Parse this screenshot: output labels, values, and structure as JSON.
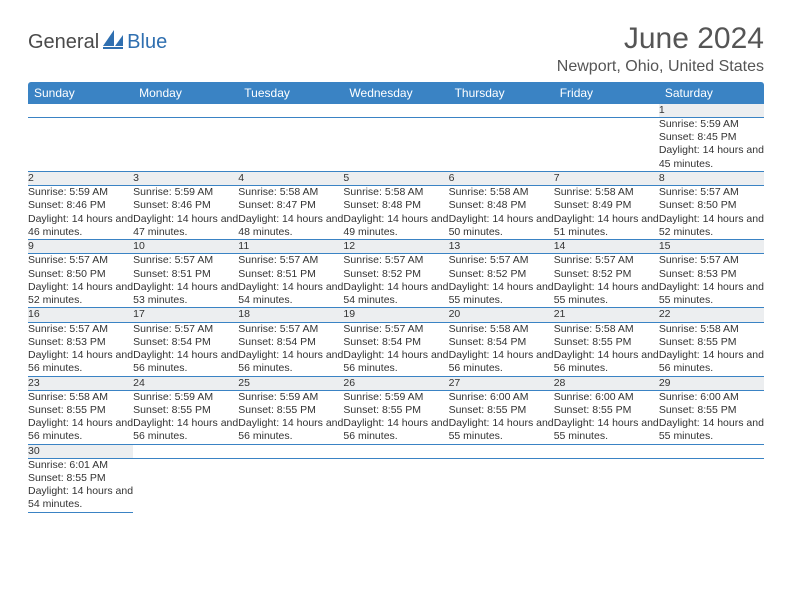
{
  "logo": {
    "part1": "General",
    "part2": "Blue"
  },
  "title": "June 2024",
  "location": "Newport, Ohio, United States",
  "colors": {
    "header_bg": "#3a83c4",
    "header_text": "#ffffff",
    "daynum_bg": "#eceef0",
    "divider": "#3a83c4",
    "logo_gray": "#4a4a4a",
    "logo_blue": "#2f6fb0"
  },
  "weekdays": [
    "Sunday",
    "Monday",
    "Tuesday",
    "Wednesday",
    "Thursday",
    "Friday",
    "Saturday"
  ],
  "weeks": [
    {
      "nums": [
        "",
        "",
        "",
        "",
        "",
        "",
        "1"
      ],
      "details": [
        "",
        "",
        "",
        "",
        "",
        "",
        "Sunrise: 5:59 AM\nSunset: 8:45 PM\nDaylight: 14 hours and 45 minutes."
      ]
    },
    {
      "nums": [
        "2",
        "3",
        "4",
        "5",
        "6",
        "7",
        "8"
      ],
      "details": [
        "Sunrise: 5:59 AM\nSunset: 8:46 PM\nDaylight: 14 hours and 46 minutes.",
        "Sunrise: 5:59 AM\nSunset: 8:46 PM\nDaylight: 14 hours and 47 minutes.",
        "Sunrise: 5:58 AM\nSunset: 8:47 PM\nDaylight: 14 hours and 48 minutes.",
        "Sunrise: 5:58 AM\nSunset: 8:48 PM\nDaylight: 14 hours and 49 minutes.",
        "Sunrise: 5:58 AM\nSunset: 8:48 PM\nDaylight: 14 hours and 50 minutes.",
        "Sunrise: 5:58 AM\nSunset: 8:49 PM\nDaylight: 14 hours and 51 minutes.",
        "Sunrise: 5:57 AM\nSunset: 8:50 PM\nDaylight: 14 hours and 52 minutes."
      ]
    },
    {
      "nums": [
        "9",
        "10",
        "11",
        "12",
        "13",
        "14",
        "15"
      ],
      "details": [
        "Sunrise: 5:57 AM\nSunset: 8:50 PM\nDaylight: 14 hours and 52 minutes.",
        "Sunrise: 5:57 AM\nSunset: 8:51 PM\nDaylight: 14 hours and 53 minutes.",
        "Sunrise: 5:57 AM\nSunset: 8:51 PM\nDaylight: 14 hours and 54 minutes.",
        "Sunrise: 5:57 AM\nSunset: 8:52 PM\nDaylight: 14 hours and 54 minutes.",
        "Sunrise: 5:57 AM\nSunset: 8:52 PM\nDaylight: 14 hours and 55 minutes.",
        "Sunrise: 5:57 AM\nSunset: 8:52 PM\nDaylight: 14 hours and 55 minutes.",
        "Sunrise: 5:57 AM\nSunset: 8:53 PM\nDaylight: 14 hours and 55 minutes."
      ]
    },
    {
      "nums": [
        "16",
        "17",
        "18",
        "19",
        "20",
        "21",
        "22"
      ],
      "details": [
        "Sunrise: 5:57 AM\nSunset: 8:53 PM\nDaylight: 14 hours and 56 minutes.",
        "Sunrise: 5:57 AM\nSunset: 8:54 PM\nDaylight: 14 hours and 56 minutes.",
        "Sunrise: 5:57 AM\nSunset: 8:54 PM\nDaylight: 14 hours and 56 minutes.",
        "Sunrise: 5:57 AM\nSunset: 8:54 PM\nDaylight: 14 hours and 56 minutes.",
        "Sunrise: 5:58 AM\nSunset: 8:54 PM\nDaylight: 14 hours and 56 minutes.",
        "Sunrise: 5:58 AM\nSunset: 8:55 PM\nDaylight: 14 hours and 56 minutes.",
        "Sunrise: 5:58 AM\nSunset: 8:55 PM\nDaylight: 14 hours and 56 minutes."
      ]
    },
    {
      "nums": [
        "23",
        "24",
        "25",
        "26",
        "27",
        "28",
        "29"
      ],
      "details": [
        "Sunrise: 5:58 AM\nSunset: 8:55 PM\nDaylight: 14 hours and 56 minutes.",
        "Sunrise: 5:59 AM\nSunset: 8:55 PM\nDaylight: 14 hours and 56 minutes.",
        "Sunrise: 5:59 AM\nSunset: 8:55 PM\nDaylight: 14 hours and 56 minutes.",
        "Sunrise: 5:59 AM\nSunset: 8:55 PM\nDaylight: 14 hours and 56 minutes.",
        "Sunrise: 6:00 AM\nSunset: 8:55 PM\nDaylight: 14 hours and 55 minutes.",
        "Sunrise: 6:00 AM\nSunset: 8:55 PM\nDaylight: 14 hours and 55 minutes.",
        "Sunrise: 6:00 AM\nSunset: 8:55 PM\nDaylight: 14 hours and 55 minutes."
      ]
    },
    {
      "nums": [
        "30",
        "",
        "",
        "",
        "",
        "",
        ""
      ],
      "details": [
        "Sunrise: 6:01 AM\nSunset: 8:55 PM\nDaylight: 14 hours and 54 minutes.",
        "",
        "",
        "",
        "",
        "",
        ""
      ]
    }
  ]
}
